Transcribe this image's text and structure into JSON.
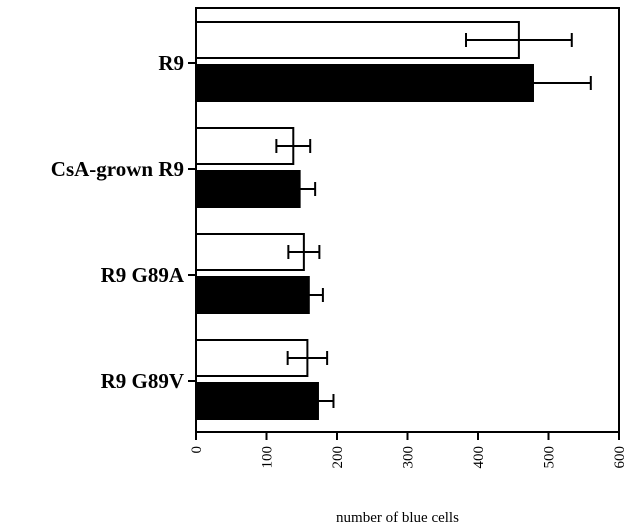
{
  "chart_data": {
    "type": "bar",
    "orientation": "horizontal",
    "categories": [
      "R9",
      "CsA-grown R9",
      "R9 G89A",
      "R9 G89V"
    ],
    "series": [
      {
        "style": "open",
        "values": [
          458,
          138,
          153,
          158
        ],
        "errors": [
          75,
          24,
          22,
          28
        ]
      },
      {
        "style": "filled",
        "values": [
          478,
          147,
          160,
          173
        ],
        "errors": [
          82,
          22,
          20,
          22
        ]
      }
    ],
    "xlabel": "number of blue cells",
    "xlim": [
      0,
      600
    ],
    "xticks": [
      0,
      100,
      200,
      300,
      400,
      500,
      600
    ],
    "grid": false,
    "legend": "none",
    "colors": {
      "open_fill": "#ffffff",
      "filled_fill": "#000000",
      "stroke": "#000000"
    }
  }
}
